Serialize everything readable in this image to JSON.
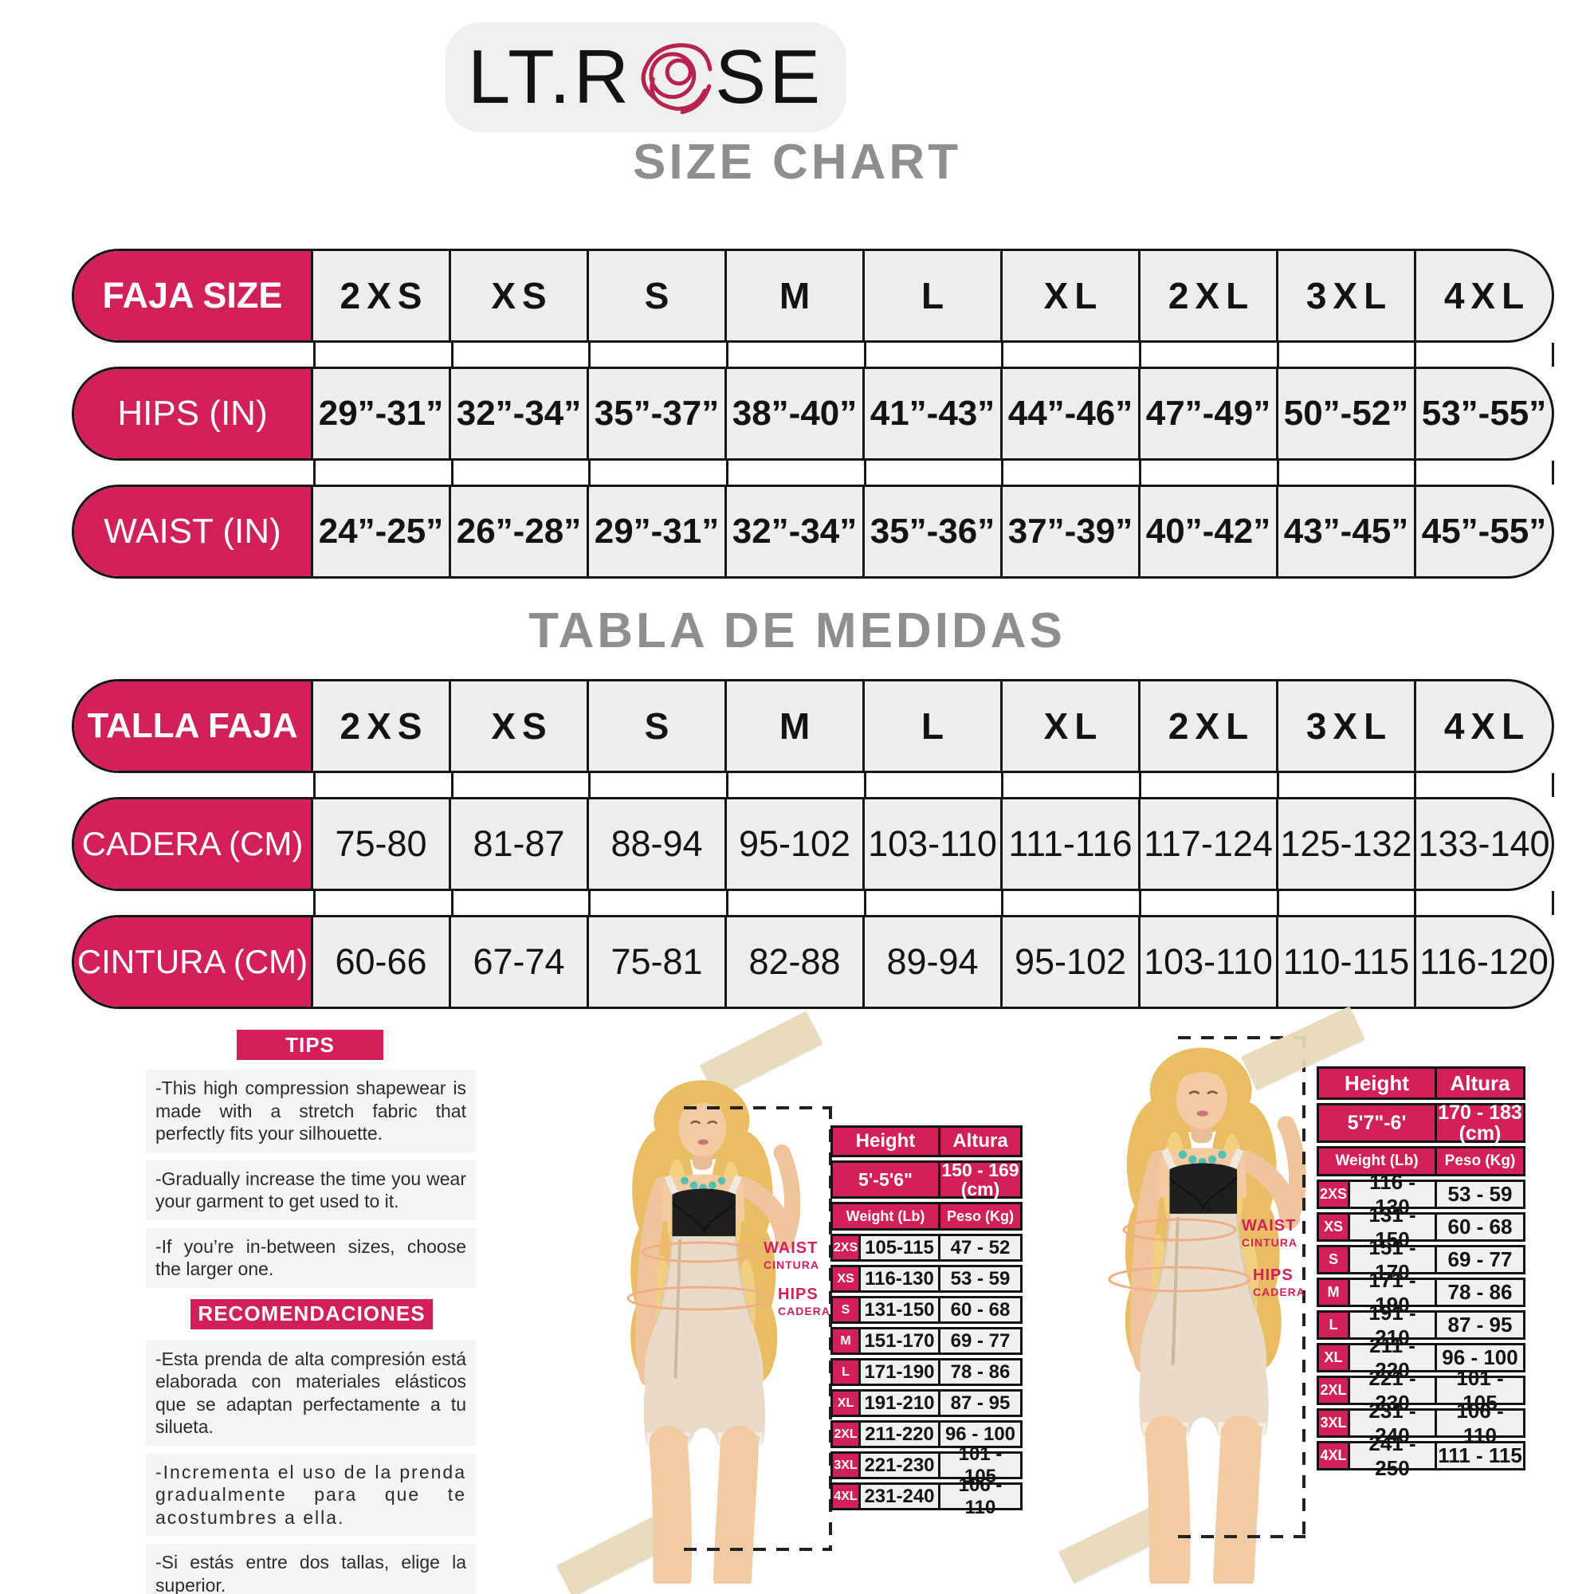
{
  "logo": {
    "brand_left": "LT.R",
    "brand_right": "SE"
  },
  "headings": {
    "size_chart": "SIZE CHART",
    "tabla_de_medidas": "TABLA DE MEDIDAS"
  },
  "colors": {
    "pink": "#D22158",
    "rose": "#B6234D",
    "cell_gray": "#EDEDED",
    "heading_gray": "#8E8E8E",
    "tape": "#E8D9B9",
    "annotation_orange": "#F0AE85"
  },
  "size_table": {
    "rows": [
      {
        "label": "FAJA SIZE",
        "values": [
          "2XS",
          "XS",
          "S",
          "M",
          "L",
          "XL",
          "2XL",
          "3XL",
          "4XL"
        ]
      },
      {
        "label": "HIPS (IN)",
        "values": [
          "29”-31”",
          "32”-34”",
          "35”-37”",
          "38”-40”",
          "41”-43”",
          "44”-46”",
          "47”-49”",
          "50”-52”",
          "53”-55”"
        ]
      },
      {
        "label": "WAIST (IN)",
        "values": [
          "24”-25”",
          "26”-28”",
          "29”-31”",
          "32”-34”",
          "35”-36”",
          "37”-39”",
          "40”-42”",
          "43”-45”",
          "45”-55”"
        ]
      }
    ]
  },
  "medidas_table": {
    "rows": [
      {
        "label": "TALLA FAJA",
        "values": [
          "2XS",
          "XS",
          "S",
          "M",
          "L",
          "XL",
          "2XL",
          "3XL",
          "4XL"
        ]
      },
      {
        "label": "CADERA (CM)",
        "values": [
          "75-80",
          "81-87",
          "88-94",
          "95-102",
          "103-110",
          "111-116",
          "117-124",
          "125-132",
          "133-140"
        ]
      },
      {
        "label": "CINTURA (CM)",
        "values": [
          "60-66",
          "67-74",
          "75-81",
          "82-88",
          "89-94",
          "95-102",
          "103-110",
          "110-115",
          "116-120"
        ]
      }
    ]
  },
  "tips": {
    "header": "TIPS",
    "items": [
      "-This  high  compression  shapewear  is made with a stretch fabric that perfectly fits your silhouette.",
      "-Gradually increase the time you wear your garment to get used to it.",
      "-If  you’re  in-between  sizes,  choose the larger one."
    ]
  },
  "recomendaciones": {
    "header": "RECOMENDACIONES",
    "items": [
      "-Esta prenda de alta compresión está elaborada  con  materiales  elásticos que  se  adaptan  perfectamente  a  tu silueta.",
      "-Incrementa  el  uso  de  la prenda gradualmente para que te acostumbres a ella.",
      "-Si estás entre dos tallas, elige la superior."
    ]
  },
  "measure_annotations": {
    "waist_en": "WAIST",
    "waist_es": "CINTURA",
    "hips_en": "HIPS",
    "hips_es": "CADERA"
  },
  "weight_tables": [
    {
      "height_label": "Height",
      "altura_label": "Altura",
      "height_range": "5'-5'6\"",
      "altura_range": "150 - 169 (cm)",
      "weight_label": "Weight (Lb)",
      "peso_label": "Peso (Kg)",
      "rows": [
        {
          "size": "2XS",
          "lb": "105-115",
          "kg": "47 - 52"
        },
        {
          "size": "XS",
          "lb": "116-130",
          "kg": "53 - 59"
        },
        {
          "size": "S",
          "lb": "131-150",
          "kg": "60 - 68"
        },
        {
          "size": "M",
          "lb": "151-170",
          "kg": "69 - 77"
        },
        {
          "size": "L",
          "lb": "171-190",
          "kg": "78 - 86"
        },
        {
          "size": "XL",
          "lb": "191-210",
          "kg": "87 - 95"
        },
        {
          "size": "2XL",
          "lb": "211-220",
          "kg": "96 - 100"
        },
        {
          "size": "3XL",
          "lb": "221-230",
          "kg": "101 - 105"
        },
        {
          "size": "4XL",
          "lb": "231-240",
          "kg": "106 - 110"
        }
      ]
    },
    {
      "height_label": "Height",
      "altura_label": "Altura",
      "height_range": "5'7\"-6'",
      "altura_range": "170 - 183 (cm)",
      "weight_label": "Weight (Lb)",
      "peso_label": "Peso (Kg)",
      "rows": [
        {
          "size": "2XS",
          "lb": "116 - 130",
          "kg": "53 - 59"
        },
        {
          "size": "XS",
          "lb": "131 - 150",
          "kg": "60 - 68"
        },
        {
          "size": "S",
          "lb": "151 - 170",
          "kg": "69 - 77"
        },
        {
          "size": "M",
          "lb": "171 - 190",
          "kg": "78 - 86"
        },
        {
          "size": "L",
          "lb": "191 - 210",
          "kg": "87 - 95"
        },
        {
          "size": "XL",
          "lb": "211 - 220",
          "kg": "96 - 100"
        },
        {
          "size": "2XL",
          "lb": "221 - 230",
          "kg": "101 - 105"
        },
        {
          "size": "3XL",
          "lb": "231 - 240",
          "kg": "106 - 110"
        },
        {
          "size": "4XL",
          "lb": "241 - 250",
          "kg": "111 - 115"
        }
      ]
    }
  ]
}
